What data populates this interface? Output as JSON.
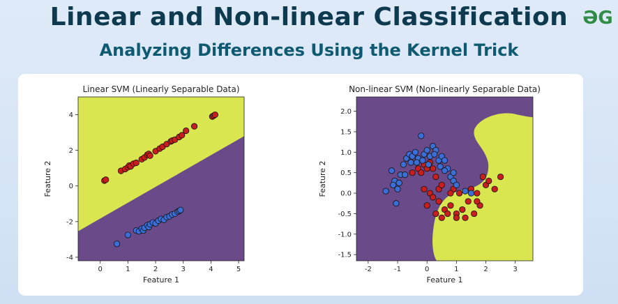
{
  "header": {
    "title": "Linear and Non-linear Classification",
    "subtitle": "Analyzing Differences Using the Kernel Trick",
    "logo": "GfG"
  },
  "colors": {
    "yellow": "#d9e650",
    "purple": "#6b4a8a",
    "red": "#c81e1e",
    "blue": "#3c6fd6"
  },
  "chart_data": [
    {
      "type": "scatter",
      "title": "Linear SVM (Linearly Separable Data)",
      "xlabel": "Feature 1",
      "ylabel": "Feature 2",
      "xlim": [
        -0.8,
        5.2
      ],
      "ylim": [
        -4.2,
        5.0
      ],
      "xticks": [
        0,
        1,
        2,
        3,
        4,
        5
      ],
      "yticks": [
        -4,
        -2,
        0,
        2,
        4
      ],
      "decision_boundary": {
        "slope": 0.89,
        "intercept": -1.83
      },
      "series": [
        {
          "color": "#c81e1e",
          "points": [
            [
              0.15,
              0.3
            ],
            [
              0.2,
              0.35
            ],
            [
              0.75,
              0.85
            ],
            [
              0.9,
              0.95
            ],
            [
              1.0,
              1.05
            ],
            [
              1.05,
              1.15
            ],
            [
              1.1,
              1.1
            ],
            [
              1.2,
              1.25
            ],
            [
              1.3,
              1.3
            ],
            [
              1.5,
              1.5
            ],
            [
              1.6,
              1.6
            ],
            [
              1.7,
              1.75
            ],
            [
              1.75,
              1.8
            ],
            [
              1.8,
              1.7
            ],
            [
              2.0,
              1.95
            ],
            [
              2.15,
              2.1
            ],
            [
              2.25,
              2.2
            ],
            [
              2.4,
              2.35
            ],
            [
              2.55,
              2.5
            ],
            [
              2.6,
              2.55
            ],
            [
              2.7,
              2.6
            ],
            [
              2.85,
              2.75
            ],
            [
              2.95,
              2.85
            ],
            [
              3.1,
              3.1
            ],
            [
              3.4,
              3.35
            ],
            [
              4.05,
              3.9
            ],
            [
              4.1,
              3.95
            ],
            [
              4.15,
              4.0
            ]
          ]
        },
        {
          "color": "#3c6fd6",
          "points": [
            [
              0.6,
              -3.25
            ],
            [
              1.0,
              -2.75
            ],
            [
              1.3,
              -2.5
            ],
            [
              1.4,
              -2.55
            ],
            [
              1.5,
              -2.4
            ],
            [
              1.55,
              -2.5
            ],
            [
              1.6,
              -2.35
            ],
            [
              1.7,
              -2.2
            ],
            [
              1.75,
              -2.3
            ],
            [
              1.8,
              -2.15
            ],
            [
              1.9,
              -2.05
            ],
            [
              2.0,
              -2.1
            ],
            [
              2.1,
              -1.95
            ],
            [
              2.2,
              -1.85
            ],
            [
              2.3,
              -1.9
            ],
            [
              2.4,
              -1.75
            ],
            [
              2.5,
              -1.7
            ],
            [
              2.6,
              -1.6
            ],
            [
              2.7,
              -1.55
            ],
            [
              2.8,
              -1.45
            ],
            [
              2.85,
              -1.4
            ],
            [
              2.9,
              -1.35
            ]
          ]
        }
      ]
    },
    {
      "type": "scatter",
      "title": "Non-linear SVM (Non-linearly Separable Data)",
      "xlabel": "Feature 1",
      "ylabel": "Feature 2",
      "xlim": [
        -2.4,
        3.6
      ],
      "ylim": [
        -1.65,
        2.35
      ],
      "xticks": [
        -2,
        -1,
        0,
        1,
        2,
        3
      ],
      "yticks": [
        -1.5,
        -1.0,
        -0.5,
        0.0,
        0.5,
        1.0,
        1.5,
        2.0
      ],
      "series": [
        {
          "color": "#c81e1e",
          "points": [
            [
              -0.5,
              0.5
            ],
            [
              -0.3,
              0.6
            ],
            [
              -0.2,
              0.5
            ],
            [
              -0.1,
              0.7
            ],
            [
              0.0,
              0.6
            ],
            [
              0.1,
              0.75
            ],
            [
              0.2,
              0.6
            ],
            [
              0.3,
              0.4
            ],
            [
              0.4,
              0.1
            ],
            [
              0.5,
              0.2
            ],
            [
              0.1,
              0.0
            ],
            [
              -0.1,
              0.1
            ],
            [
              0.2,
              -0.1
            ],
            [
              0.4,
              -0.2
            ],
            [
              0.6,
              -0.4
            ],
            [
              0.3,
              -0.5
            ],
            [
              0.5,
              -0.6
            ],
            [
              0.8,
              -0.3
            ],
            [
              1.0,
              -0.5
            ],
            [
              1.2,
              -0.4
            ],
            [
              0.9,
              0.1
            ],
            [
              1.1,
              0.0
            ],
            [
              1.4,
              -0.2
            ],
            [
              1.5,
              0.1
            ],
            [
              1.7,
              0.0
            ],
            [
              1.8,
              -0.3
            ],
            [
              2.0,
              0.2
            ],
            [
              1.9,
              0.4
            ],
            [
              2.1,
              0.3
            ],
            [
              2.5,
              0.4
            ],
            [
              1.6,
              -0.5
            ],
            [
              1.3,
              -0.6
            ],
            [
              0.7,
              -0.5
            ],
            [
              1.0,
              -0.6
            ],
            [
              0.0,
              -0.3
            ],
            [
              0.8,
              0.0
            ],
            [
              1.7,
              -0.2
            ],
            [
              2.3,
              0.1
            ]
          ]
        },
        {
          "color": "#3c6fd6",
          "points": [
            [
              -1.4,
              0.05
            ],
            [
              -1.2,
              0.55
            ],
            [
              -1.1,
              0.3
            ],
            [
              -1.0,
              0.1
            ],
            [
              -1.05,
              -0.25
            ],
            [
              -0.9,
              0.45
            ],
            [
              -0.8,
              0.7
            ],
            [
              -0.7,
              0.85
            ],
            [
              -0.6,
              0.95
            ],
            [
              -0.5,
              0.9
            ],
            [
              -0.4,
              1.0
            ],
            [
              -0.3,
              0.85
            ],
            [
              -0.2,
              1.4
            ],
            [
              -0.1,
              0.95
            ],
            [
              0.0,
              1.05
            ],
            [
              0.1,
              0.9
            ],
            [
              0.2,
              1.15
            ],
            [
              0.3,
              1.05
            ],
            [
              0.4,
              0.8
            ],
            [
              0.5,
              0.9
            ],
            [
              0.6,
              0.8
            ],
            [
              0.7,
              0.6
            ],
            [
              0.8,
              0.4
            ],
            [
              0.9,
              0.3
            ],
            [
              1.0,
              0.2
            ],
            [
              0.6,
              0.55
            ],
            [
              0.45,
              0.65
            ],
            [
              0.9,
              0.5
            ],
            [
              1.3,
              0.05
            ],
            [
              1.5,
              0.0
            ],
            [
              -1.15,
              0.2
            ],
            [
              -0.95,
              0.25
            ],
            [
              -0.75,
              0.45
            ],
            [
              -0.55,
              0.75
            ],
            [
              -0.35,
              0.75
            ],
            [
              -0.15,
              0.8
            ],
            [
              0.25,
              0.95
            ],
            [
              0.05,
              0.7
            ]
          ]
        }
      ]
    }
  ]
}
